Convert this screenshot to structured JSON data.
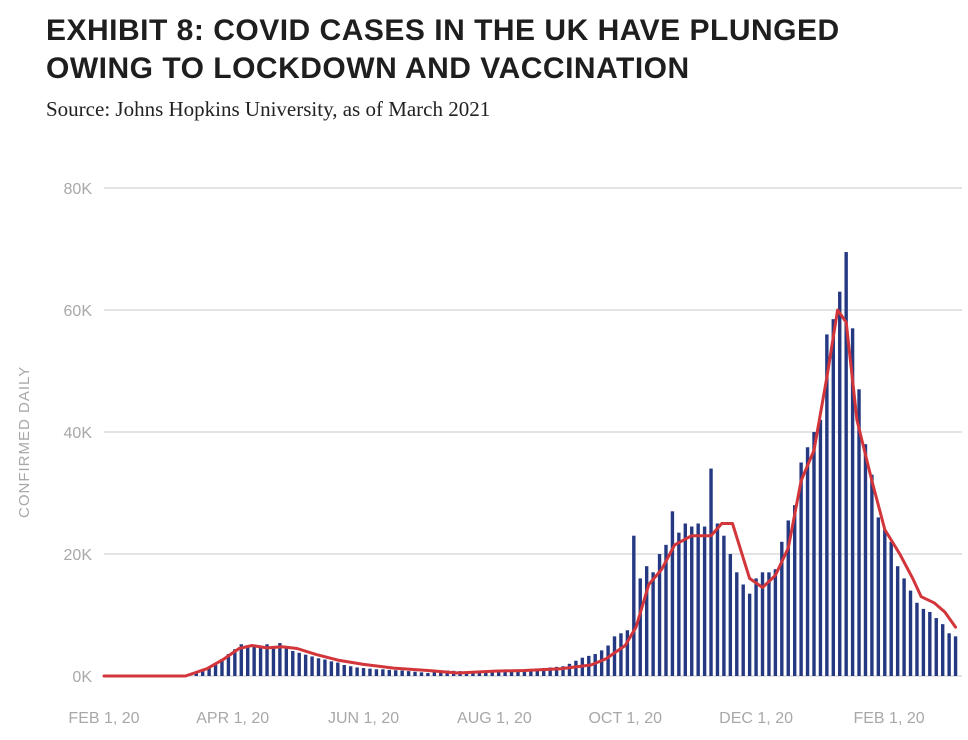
{
  "header": {
    "title": "EXHIBIT 8: COVID CASES IN THE UK HAVE PLUNGED OWING TO LOCKDOWN AND VACCINATION",
    "subtitle": "Source: Johns Hopkins University, as of March 2021"
  },
  "colors": {
    "bars": "#253882",
    "line": "#d2353a",
    "grid": "#c8c8c8",
    "axis_text": "#a8a8a8"
  },
  "chart_data": {
    "type": "bar",
    "title": "EXHIBIT 8: COVID CASES IN THE UK HAVE PLUNGED OWING TO LOCKDOWN AND VACCINATION",
    "ylabel": "CONFIRMED DAILY",
    "xlabel": "",
    "x_ticks": [
      "FEB 1, 20",
      "APR 1, 20",
      "JUN 1, 20",
      "AUG 1, 20",
      "OCT 1, 20",
      "DEC 1, 20",
      "FEB 1, 20"
    ],
    "y_ticks": [
      "0K",
      "20K",
      "40K",
      "60K",
      "80K"
    ],
    "ylim": [
      0,
      80000
    ],
    "x_range": [
      "2020-02-01",
      "2021-03-07"
    ],
    "grid": true,
    "legend": "none",
    "series": [
      {
        "kind": "bar",
        "x": [
          "2020-03-15",
          "2020-03-18",
          "2020-03-21",
          "2020-03-24",
          "2020-03-27",
          "2020-03-30",
          "2020-04-02",
          "2020-04-05",
          "2020-04-08",
          "2020-04-11",
          "2020-04-14",
          "2020-04-17",
          "2020-04-20",
          "2020-04-23",
          "2020-04-26",
          "2020-04-29",
          "2020-05-02",
          "2020-05-05",
          "2020-05-08",
          "2020-05-11",
          "2020-05-14",
          "2020-05-17",
          "2020-05-20",
          "2020-05-23",
          "2020-05-26",
          "2020-05-29",
          "2020-06-01",
          "2020-06-04",
          "2020-06-07",
          "2020-06-10",
          "2020-06-13",
          "2020-06-16",
          "2020-06-19",
          "2020-06-22",
          "2020-06-25",
          "2020-06-28",
          "2020-07-01",
          "2020-07-04",
          "2020-07-07",
          "2020-07-10",
          "2020-07-13",
          "2020-07-16",
          "2020-07-19",
          "2020-07-22",
          "2020-07-25",
          "2020-07-28",
          "2020-07-31",
          "2020-08-03",
          "2020-08-06",
          "2020-08-09",
          "2020-08-12",
          "2020-08-15",
          "2020-08-18",
          "2020-08-21",
          "2020-08-24",
          "2020-08-27",
          "2020-08-30",
          "2020-09-02",
          "2020-09-05",
          "2020-09-08",
          "2020-09-11",
          "2020-09-14",
          "2020-09-17",
          "2020-09-20",
          "2020-09-23",
          "2020-09-26",
          "2020-09-29",
          "2020-10-02",
          "2020-10-05",
          "2020-10-08",
          "2020-10-11",
          "2020-10-14",
          "2020-10-17",
          "2020-10-20",
          "2020-10-23",
          "2020-10-26",
          "2020-10-29",
          "2020-11-01",
          "2020-11-04",
          "2020-11-07",
          "2020-11-10",
          "2020-11-13",
          "2020-11-16",
          "2020-11-19",
          "2020-11-22",
          "2020-11-25",
          "2020-11-28",
          "2020-12-01",
          "2020-12-04",
          "2020-12-07",
          "2020-12-10",
          "2020-12-13",
          "2020-12-16",
          "2020-12-19",
          "2020-12-22",
          "2020-12-25",
          "2020-12-28",
          "2020-12-31",
          "2021-01-03",
          "2021-01-06",
          "2021-01-09",
          "2021-01-12",
          "2021-01-15",
          "2021-01-18",
          "2021-01-21",
          "2021-01-24",
          "2021-01-27",
          "2021-01-30",
          "2021-02-02",
          "2021-02-05",
          "2021-02-08",
          "2021-02-11",
          "2021-02-14",
          "2021-02-17",
          "2021-02-20",
          "2021-02-23",
          "2021-02-26",
          "2021-03-01",
          "2021-03-04"
        ],
        "values": [
          500,
          900,
          1300,
          2000,
          2800,
          3600,
          4400,
          5200,
          5000,
          5000,
          4600,
          5200,
          4700,
          5400,
          4600,
          4100,
          3800,
          3500,
          3200,
          2900,
          2700,
          2400,
          2200,
          1800,
          1600,
          1400,
          1300,
          1200,
          1100,
          1100,
          1000,
          950,
          900,
          800,
          700,
          600,
          500,
          700,
          800,
          900,
          850,
          800,
          750,
          700,
          750,
          800,
          850,
          900,
          950,
          1000,
          1050,
          1100,
          1150,
          1200,
          1300,
          1400,
          1500,
          1600,
          2000,
          2500,
          3000,
          3300,
          3600,
          4200,
          5000,
          6500,
          7000,
          7500,
          23000,
          16000,
          18000,
          17000,
          20000,
          21500,
          27000,
          23500,
          25000,
          24500,
          25000,
          24500,
          34000,
          25000,
          23000,
          20000,
          17000,
          15000,
          13500,
          16000,
          17000,
          17000,
          17500,
          22000,
          25500,
          28000,
          35000,
          37500,
          40000,
          42000,
          56000,
          58500,
          63000,
          69500,
          57000,
          47000,
          38000,
          33000,
          26000,
          24000,
          22000,
          18000,
          16000,
          14000,
          12000,
          11000,
          10500,
          9500,
          8500,
          7000,
          6500
        ]
      },
      {
        "kind": "line",
        "x": [
          "2020-02-01",
          "2020-03-10",
          "2020-03-20",
          "2020-03-28",
          "2020-04-04",
          "2020-04-10",
          "2020-04-17",
          "2020-04-24",
          "2020-05-01",
          "2020-05-10",
          "2020-05-20",
          "2020-06-01",
          "2020-06-15",
          "2020-07-01",
          "2020-07-15",
          "2020-08-01",
          "2020-08-15",
          "2020-09-01",
          "2020-09-15",
          "2020-09-22",
          "2020-10-01",
          "2020-10-06",
          "2020-10-12",
          "2020-10-18",
          "2020-10-24",
          "2020-11-01",
          "2020-11-10",
          "2020-11-15",
          "2020-11-20",
          "2020-11-28",
          "2020-12-04",
          "2020-12-10",
          "2020-12-16",
          "2020-12-22",
          "2020-12-28",
          "2021-01-03",
          "2021-01-08",
          "2021-01-12",
          "2021-01-17",
          "2021-01-24",
          "2021-01-30",
          "2021-02-06",
          "2021-02-12",
          "2021-02-16",
          "2021-02-22",
          "2021-02-27",
          "2021-03-04"
        ],
        "values": [
          0,
          0,
          1200,
          2800,
          4500,
          5000,
          4600,
          4800,
          4500,
          3500,
          2600,
          1900,
          1300,
          900,
          500,
          800,
          900,
          1200,
          1800,
          2800,
          5000,
          8000,
          15000,
          17500,
          21500,
          23000,
          23000,
          25000,
          25000,
          16000,
          14500,
          16500,
          21000,
          32000,
          37000,
          49000,
          60000,
          58000,
          42000,
          32000,
          24000,
          20000,
          16000,
          13000,
          12000,
          10500,
          8000
        ]
      }
    ]
  }
}
